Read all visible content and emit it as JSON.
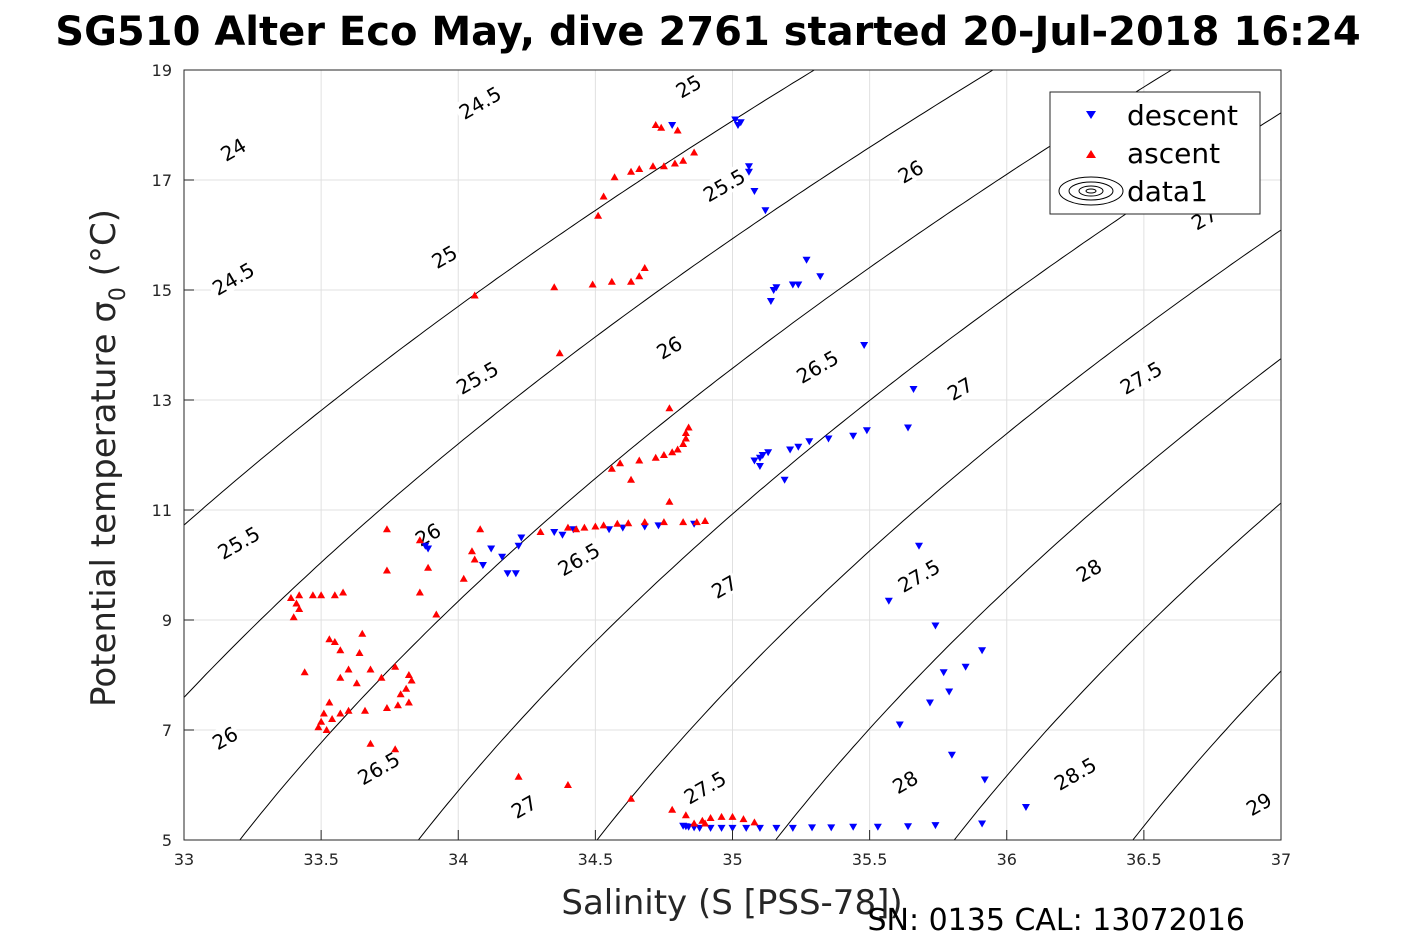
{
  "chart_data": {
    "type": "scatter",
    "title": "SG510 Alter Eco May, dive 2761 started 20-Jul-2018 16:24",
    "xlabel": "Salinity (S [PSS-78])",
    "ylabel": "Potential temperature σ",
    "ylabel_sub": "0",
    "ylabel_unit": " (°C)",
    "footer": "SN: 0135  CAL: 13072016",
    "xlim": [
      33,
      37
    ],
    "ylim": [
      5,
      19
    ],
    "xticks": [
      "33",
      "33.5",
      "34",
      "34.5",
      "35",
      "35.5",
      "36",
      "36.5",
      "37"
    ],
    "yticks": [
      "5",
      "7",
      "9",
      "11",
      "13",
      "15",
      "17",
      "19"
    ],
    "grid": true,
    "legend_position": "top-right",
    "legend": [
      "descent",
      "ascent",
      "data1"
    ],
    "colors": {
      "descent": "#0000ff",
      "ascent": "#ff0000",
      "contour": "#000000",
      "grid": "#e0e0e0"
    },
    "series": [
      {
        "name": "descent",
        "marker": "triangle-down",
        "points": [
          [
            34.78,
            18.0
          ],
          [
            35.01,
            18.1
          ],
          [
            35.02,
            18.0
          ],
          [
            35.03,
            18.05
          ],
          [
            35.06,
            17.25
          ],
          [
            35.06,
            17.15
          ],
          [
            35.08,
            16.8
          ],
          [
            35.12,
            16.45
          ],
          [
            35.27,
            15.55
          ],
          [
            35.32,
            15.25
          ],
          [
            35.24,
            15.1
          ],
          [
            35.22,
            15.1
          ],
          [
            35.16,
            15.05
          ],
          [
            35.15,
            15.0
          ],
          [
            35.14,
            14.8
          ],
          [
            35.48,
            14.0
          ],
          [
            35.66,
            13.2
          ],
          [
            35.64,
            12.5
          ],
          [
            35.49,
            12.45
          ],
          [
            35.44,
            12.35
          ],
          [
            35.35,
            12.3
          ],
          [
            35.28,
            12.25
          ],
          [
            35.24,
            12.15
          ],
          [
            35.21,
            12.1
          ],
          [
            35.13,
            12.05
          ],
          [
            35.11,
            12.0
          ],
          [
            35.1,
            11.95
          ],
          [
            35.08,
            11.9
          ],
          [
            35.1,
            11.8
          ],
          [
            35.19,
            11.55
          ],
          [
            34.86,
            10.75
          ],
          [
            34.73,
            10.72
          ],
          [
            34.68,
            10.7
          ],
          [
            34.6,
            10.68
          ],
          [
            34.55,
            10.65
          ],
          [
            34.42,
            10.65
          ],
          [
            34.38,
            10.55
          ],
          [
            34.35,
            10.6
          ],
          [
            34.23,
            10.5
          ],
          [
            34.22,
            10.35
          ],
          [
            34.16,
            10.15
          ],
          [
            34.12,
            10.3
          ],
          [
            34.09,
            10.0
          ],
          [
            34.18,
            9.85
          ],
          [
            34.21,
            9.85
          ],
          [
            33.88,
            10.35
          ],
          [
            33.89,
            10.3
          ],
          [
            35.68,
            10.35
          ],
          [
            35.57,
            9.35
          ],
          [
            35.74,
            8.9
          ],
          [
            35.91,
            8.45
          ],
          [
            35.85,
            8.15
          ],
          [
            35.77,
            8.05
          ],
          [
            35.79,
            7.7
          ],
          [
            35.72,
            7.5
          ],
          [
            35.61,
            7.1
          ],
          [
            35.8,
            6.55
          ],
          [
            35.92,
            6.1
          ],
          [
            36.07,
            5.6
          ],
          [
            35.91,
            5.3
          ],
          [
            35.74,
            5.27
          ],
          [
            35.64,
            5.25
          ],
          [
            35.53,
            5.24
          ],
          [
            35.44,
            5.24
          ],
          [
            35.36,
            5.23
          ],
          [
            35.29,
            5.23
          ],
          [
            35.22,
            5.22
          ],
          [
            35.16,
            5.22
          ],
          [
            35.1,
            5.22
          ],
          [
            35.05,
            5.22
          ],
          [
            35.0,
            5.22
          ],
          [
            34.96,
            5.22
          ],
          [
            34.92,
            5.22
          ],
          [
            34.88,
            5.22
          ],
          [
            34.86,
            5.23
          ],
          [
            34.84,
            5.24
          ],
          [
            34.83,
            5.25
          ],
          [
            34.82,
            5.26
          ]
        ]
      },
      {
        "name": "ascent",
        "marker": "triangle-up",
        "points": [
          [
            34.72,
            18.0
          ],
          [
            34.74,
            17.95
          ],
          [
            34.8,
            17.9
          ],
          [
            34.86,
            17.5
          ],
          [
            34.82,
            17.35
          ],
          [
            34.79,
            17.3
          ],
          [
            34.75,
            17.25
          ],
          [
            34.71,
            17.25
          ],
          [
            34.66,
            17.2
          ],
          [
            34.63,
            17.15
          ],
          [
            34.57,
            17.05
          ],
          [
            34.53,
            16.7
          ],
          [
            34.51,
            16.35
          ],
          [
            34.68,
            15.4
          ],
          [
            34.66,
            15.25
          ],
          [
            34.63,
            15.15
          ],
          [
            34.56,
            15.15
          ],
          [
            34.49,
            15.1
          ],
          [
            34.35,
            15.05
          ],
          [
            34.06,
            14.9
          ],
          [
            34.37,
            13.85
          ],
          [
            34.77,
            12.85
          ],
          [
            34.84,
            12.5
          ],
          [
            34.83,
            12.4
          ],
          [
            34.83,
            12.3
          ],
          [
            34.82,
            12.2
          ],
          [
            34.8,
            12.1
          ],
          [
            34.78,
            12.05
          ],
          [
            34.75,
            12.0
          ],
          [
            34.72,
            11.95
          ],
          [
            34.66,
            11.9
          ],
          [
            34.59,
            11.85
          ],
          [
            34.56,
            11.75
          ],
          [
            34.63,
            11.55
          ],
          [
            34.77,
            11.15
          ],
          [
            34.9,
            10.8
          ],
          [
            34.87,
            10.78
          ],
          [
            34.82,
            10.78
          ],
          [
            34.75,
            10.78
          ],
          [
            34.68,
            10.78
          ],
          [
            34.62,
            10.76
          ],
          [
            34.58,
            10.75
          ],
          [
            34.53,
            10.72
          ],
          [
            34.5,
            10.7
          ],
          [
            34.46,
            10.68
          ],
          [
            34.43,
            10.65
          ],
          [
            34.4,
            10.68
          ],
          [
            34.3,
            10.6
          ],
          [
            34.08,
            10.65
          ],
          [
            34.05,
            10.25
          ],
          [
            34.06,
            10.1
          ],
          [
            34.02,
            9.75
          ],
          [
            33.92,
            9.1
          ],
          [
            33.86,
            10.45
          ],
          [
            33.89,
            9.95
          ],
          [
            33.86,
            9.5
          ],
          [
            33.74,
            10.65
          ],
          [
            33.74,
            9.9
          ],
          [
            33.42,
            9.45
          ],
          [
            33.39,
            9.4
          ],
          [
            33.41,
            9.3
          ],
          [
            33.42,
            9.2
          ],
          [
            33.4,
            9.05
          ],
          [
            33.47,
            9.45
          ],
          [
            33.5,
            9.45
          ],
          [
            33.55,
            9.45
          ],
          [
            33.58,
            9.5
          ],
          [
            33.53,
            8.65
          ],
          [
            33.55,
            8.6
          ],
          [
            33.57,
            8.45
          ],
          [
            33.65,
            8.75
          ],
          [
            33.64,
            8.4
          ],
          [
            33.6,
            8.1
          ],
          [
            33.57,
            7.95
          ],
          [
            33.53,
            7.5
          ],
          [
            33.51,
            7.3
          ],
          [
            33.5,
            7.15
          ],
          [
            33.49,
            7.05
          ],
          [
            33.52,
            7.0
          ],
          [
            33.44,
            8.05
          ],
          [
            33.68,
            8.1
          ],
          [
            33.63,
            7.85
          ],
          [
            33.72,
            7.95
          ],
          [
            33.77,
            8.15
          ],
          [
            33.82,
            8.0
          ],
          [
            33.83,
            7.9
          ],
          [
            33.81,
            7.75
          ],
          [
            33.79,
            7.65
          ],
          [
            33.82,
            7.5
          ],
          [
            33.78,
            7.45
          ],
          [
            33.74,
            7.4
          ],
          [
            33.66,
            7.35
          ],
          [
            33.6,
            7.35
          ],
          [
            33.57,
            7.3
          ],
          [
            33.54,
            7.2
          ],
          [
            33.68,
            6.75
          ],
          [
            33.77,
            6.65
          ],
          [
            34.22,
            6.15
          ],
          [
            34.4,
            6.0
          ],
          [
            34.63,
            5.75
          ],
          [
            34.78,
            5.55
          ],
          [
            34.83,
            5.45
          ],
          [
            34.86,
            5.3
          ],
          [
            34.89,
            5.35
          ],
          [
            34.92,
            5.4
          ],
          [
            34.96,
            5.42
          ],
          [
            35.0,
            5.42
          ],
          [
            35.04,
            5.38
          ],
          [
            35.08,
            5.32
          ],
          [
            34.9,
            5.3
          ]
        ]
      }
    ],
    "contours": [
      {
        "value": "24",
        "sigma": 24.0
      },
      {
        "value": "24.5",
        "sigma": 24.5
      },
      {
        "value": "25",
        "sigma": 25.0
      },
      {
        "value": "25.5",
        "sigma": 25.5
      },
      {
        "value": "26",
        "sigma": 26.0
      },
      {
        "value": "26.5",
        "sigma": 26.5
      },
      {
        "value": "27",
        "sigma": 27.0
      },
      {
        "value": "27.5",
        "sigma": 27.5
      },
      {
        "value": "28",
        "sigma": 28.0
      },
      {
        "value": "28.5",
        "sigma": 28.5
      },
      {
        "value": "29",
        "sigma": 29.0
      }
    ],
    "contour_labels": [
      {
        "text": "24",
        "s": 33.18,
        "t": 17.55
      },
      {
        "text": "24.5",
        "s": 34.08,
        "t": 18.4
      },
      {
        "text": "25",
        "s": 34.84,
        "t": 18.7
      },
      {
        "text": "24.5",
        "s": 33.18,
        "t": 15.2
      },
      {
        "text": "25",
        "s": 33.95,
        "t": 15.6
      },
      {
        "text": "25.5",
        "s": 34.97,
        "t": 16.9
      },
      {
        "text": "26",
        "s": 35.65,
        "t": 17.15
      },
      {
        "text": "27",
        "s": 36.65,
        "t": 16.6
      },
      {
        "text": "27",
        "s": 36.72,
        "t": 16.3
      },
      {
        "text": "25.5",
        "s": 33.2,
        "t": 10.4
      },
      {
        "text": "25.5",
        "s": 34.07,
        "t": 13.4
      },
      {
        "text": "26",
        "s": 34.77,
        "t": 13.95
      },
      {
        "text": "26.5",
        "s": 35.31,
        "t": 13.6
      },
      {
        "text": "27",
        "s": 35.83,
        "t": 13.2
      },
      {
        "text": "27.5",
        "s": 36.49,
        "t": 13.4
      },
      {
        "text": "26",
        "s": 33.89,
        "t": 10.55
      },
      {
        "text": "26.5",
        "s": 34.44,
        "t": 10.1
      },
      {
        "text": "27",
        "s": 34.97,
        "t": 9.6
      },
      {
        "text": "27.5",
        "s": 35.68,
        "t": 9.8
      },
      {
        "text": "28",
        "s": 36.3,
        "t": 9.9
      },
      {
        "text": "26",
        "s": 33.15,
        "t": 6.85
      },
      {
        "text": "26.5",
        "s": 33.71,
        "t": 6.3
      },
      {
        "text": "27",
        "s": 34.24,
        "t": 5.6
      },
      {
        "text": "27.5",
        "s": 34.9,
        "t": 5.95
      },
      {
        "text": "28",
        "s": 35.63,
        "t": 6.05
      },
      {
        "text": "28.5",
        "s": 36.25,
        "t": 6.2
      },
      {
        "text": "29",
        "s": 36.92,
        "t": 5.65
      }
    ]
  }
}
